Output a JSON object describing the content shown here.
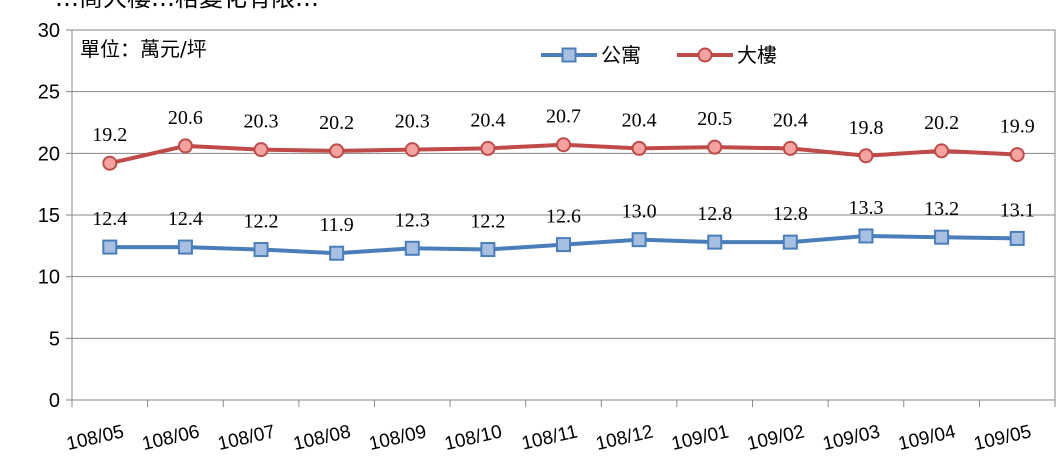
{
  "top_text_fragment": "…商大樓…格變化有限…",
  "chart_data": {
    "type": "line",
    "unit_label": "單位：萬元/坪",
    "categories": [
      "108/05",
      "108/06",
      "108/07",
      "108/08",
      "108/09",
      "108/10",
      "108/11",
      "108/12",
      "109/01",
      "109/02",
      "109/03",
      "109/04",
      "109/05"
    ],
    "series": [
      {
        "name": "公寓",
        "values": [
          12.4,
          12.4,
          12.2,
          11.9,
          12.3,
          12.2,
          12.6,
          13.0,
          12.8,
          12.8,
          13.3,
          13.2,
          13.1
        ],
        "labels": [
          "12.4",
          "12.4",
          "12.2",
          "11.9",
          "12.3",
          "12.2",
          "12.6",
          "13.0",
          "12.8",
          "12.8",
          "13.3",
          "13.2",
          "13.1"
        ],
        "color": "#4a7ebb",
        "marker": "square",
        "marker_fill": "#a7c0e1"
      },
      {
        "name": "大樓",
        "values": [
          19.2,
          20.6,
          20.3,
          20.2,
          20.3,
          20.4,
          20.7,
          20.4,
          20.5,
          20.4,
          19.8,
          20.2,
          19.9
        ],
        "labels": [
          "19.2",
          "20.6",
          "20.3",
          "20.2",
          "20.3",
          "20.4",
          "20.7",
          "20.4",
          "20.5",
          "20.4",
          "19.8",
          "20.2",
          "19.9"
        ],
        "color": "#be4b48",
        "marker": "circle",
        "marker_fill": "#f5a3a1"
      }
    ],
    "ylim": [
      0,
      30
    ],
    "yticks": [
      "0",
      "5",
      "10",
      "15",
      "20",
      "25",
      "30"
    ],
    "grid": true,
    "legend_position": "top-center"
  }
}
